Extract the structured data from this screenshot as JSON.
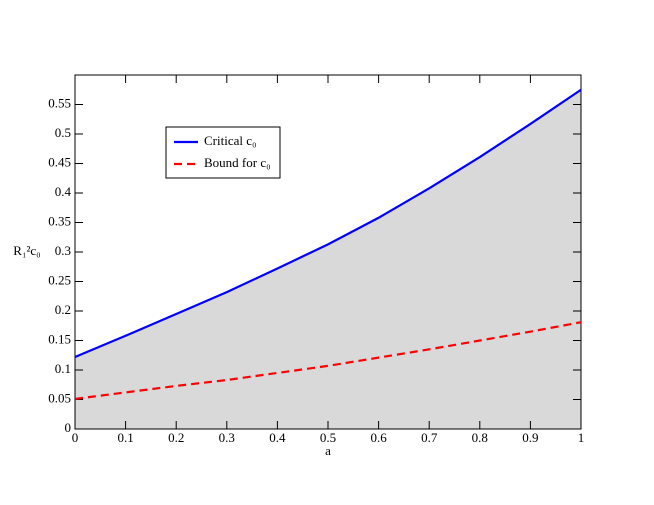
{
  "chart_data": {
    "type": "line",
    "x_label": "a",
    "y_label": "R₁²c₀",
    "x": [
      0,
      0.1,
      0.2,
      0.3,
      0.4,
      0.5,
      0.6,
      0.7,
      0.8,
      0.9,
      1
    ],
    "series": [
      {
        "name": "Critical c₀",
        "color": "#0000ff",
        "dash": "solid",
        "fill_color": "#d9d9d9",
        "values": [
          0.122,
          0.158,
          0.195,
          0.232,
          0.272,
          0.313,
          0.358,
          0.408,
          0.461,
          0.517,
          0.575
        ]
      },
      {
        "name": "Bound for c₀",
        "color": "#ff0000",
        "dash": "dashed",
        "values": [
          0.051,
          0.062,
          0.073,
          0.083,
          0.095,
          0.107,
          0.121,
          0.135,
          0.15,
          0.165,
          0.181
        ]
      }
    ],
    "xlim": [
      0,
      1
    ],
    "ylim": [
      0,
      0.6
    ],
    "xticks": [
      0,
      0.1,
      0.2,
      0.3,
      0.4,
      0.5,
      0.6,
      0.7,
      0.8,
      0.9,
      1
    ],
    "yticks": [
      0,
      0.05,
      0.1,
      0.15,
      0.2,
      0.25,
      0.3,
      0.35,
      0.4,
      0.45,
      0.5,
      0.55
    ],
    "legend": "upper left",
    "grid": false
  }
}
